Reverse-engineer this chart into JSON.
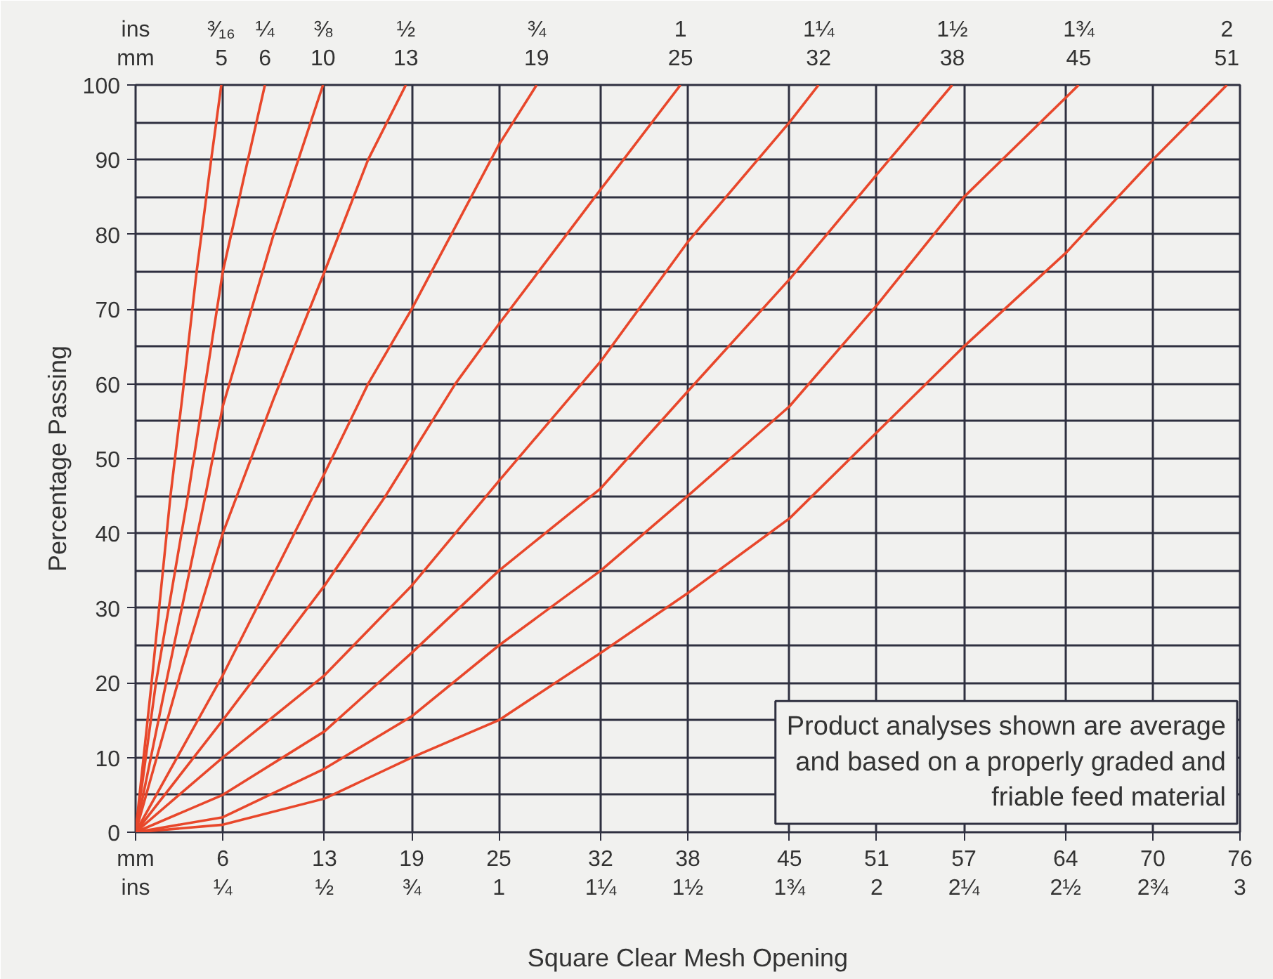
{
  "chart_data": {
    "type": "line",
    "xlabel": "Square Clear Mesh Opening",
    "ylabel": "Percentage Passing",
    "xlim": [
      0,
      76
    ],
    "ylim": [
      0,
      100
    ],
    "xticks": [
      {
        "value": 0,
        "label": "mm\nins"
      },
      {
        "value": 6,
        "label": "6\n¼"
      },
      {
        "value": 13,
        "label": "13\n½"
      },
      {
        "value": 19,
        "label": "19\n¾"
      },
      {
        "value": 25,
        "label": "25\n1"
      },
      {
        "value": 32,
        "label": "32\n1¼"
      },
      {
        "value": 38,
        "label": "38\n1½"
      },
      {
        "value": 45,
        "label": "45\n1¾"
      },
      {
        "value": 51,
        "label": "51\n2"
      },
      {
        "value": 57,
        "label": "57\n2¼"
      },
      {
        "value": 64,
        "label": "64\n2½"
      },
      {
        "value": 70,
        "label": "70\n2¾"
      },
      {
        "value": 76,
        "label": "76\n3"
      }
    ],
    "yticks": [
      0,
      10,
      20,
      30,
      40,
      50,
      60,
      70,
      80,
      90,
      100
    ],
    "grid": true,
    "series": [
      {
        "name": "³⁄₁₆\n5",
        "color": "#e8472b",
        "x": [
          0,
          1.1,
          2.4,
          3.2,
          4.2,
          5.2,
          5.9
        ],
        "values": [
          0,
          20,
          45,
          58,
          75,
          90,
          100
        ]
      },
      {
        "name": "¼\n6",
        "color": "#e8472b",
        "x": [
          0,
          1.4,
          3.6,
          4.8,
          6,
          7.5,
          8.9
        ],
        "values": [
          0,
          20,
          45,
          60,
          75,
          88,
          100
        ]
      },
      {
        "name": "⅜\n10",
        "color": "#e8472b",
        "x": [
          0,
          2.1,
          4.8,
          6,
          9.5,
          11.2,
          12.9
        ],
        "values": [
          0,
          20,
          45,
          57,
          80,
          90,
          100
        ]
      },
      {
        "name": "½\n13",
        "color": "#e8472b",
        "x": [
          0,
          3.2,
          6,
          9.5,
          13,
          16,
          18.6
        ],
        "values": [
          0,
          22,
          40,
          58,
          75,
          90,
          100
        ]
      },
      {
        "name": "¾\n19",
        "color": "#e8472b",
        "x": [
          0,
          6,
          13,
          16,
          19,
          22,
          25,
          27.6
        ],
        "values": [
          0,
          21,
          48,
          60,
          70,
          81,
          92,
          100
        ]
      },
      {
        "name": "1\n25",
        "color": "#e8472b",
        "x": [
          0,
          6,
          13,
          17.2,
          22,
          25,
          32,
          37.5
        ],
        "values": [
          0,
          15,
          33,
          45,
          60,
          68,
          86,
          100
        ]
      },
      {
        "name": "1¼\n32",
        "color": "#e8472b",
        "x": [
          0,
          6,
          13,
          19,
          25,
          32,
          38,
          45,
          47
        ],
        "values": [
          0,
          10,
          21,
          33,
          47,
          63,
          79,
          95,
          100
        ]
      },
      {
        "name": "1½\n38",
        "color": "#e8472b",
        "x": [
          0,
          6,
          13,
          19,
          25,
          32,
          38,
          45,
          51,
          56.2
        ],
        "values": [
          0,
          5,
          13.5,
          24,
          35,
          46,
          59,
          74,
          88,
          100
        ]
      },
      {
        "name": "1¾\n45",
        "color": "#e8472b",
        "x": [
          0,
          6,
          13,
          19,
          25,
          32,
          38,
          45,
          51,
          57,
          64.9
        ],
        "values": [
          0,
          2,
          8.5,
          15.5,
          25,
          35,
          45,
          57,
          70.5,
          85,
          100
        ]
      },
      {
        "name": "2\n51",
        "color": "#e8472b",
        "x": [
          0,
          6,
          13,
          19,
          25,
          32,
          38,
          45,
          51,
          57,
          64,
          70,
          75.1
        ],
        "values": [
          0,
          1,
          4.5,
          10,
          15,
          24,
          32,
          42,
          53.5,
          65,
          77.5,
          90,
          100
        ]
      }
    ],
    "annotations": [
      "ins\nmm",
      "Product analyses shown are average\nand based on a properly graded and\nfriable feed material"
    ]
  }
}
